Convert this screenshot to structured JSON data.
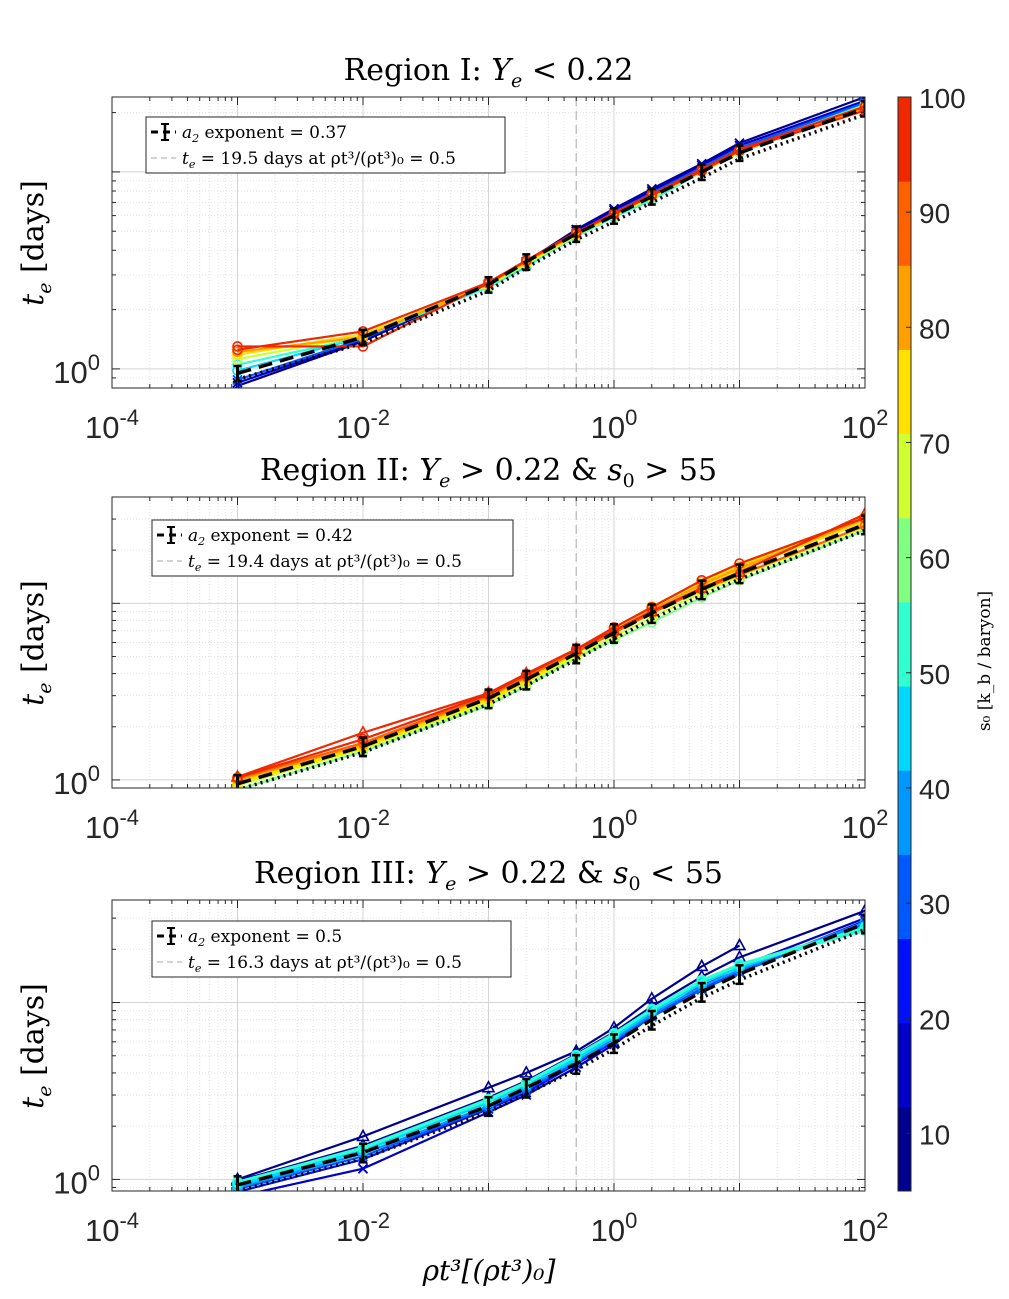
{
  "figure": {
    "xlabel": "ρt³[(ρt³)₀]",
    "ylabel_symbol": "t",
    "ylabel_sub": "e",
    "ylabel_units": "[days]",
    "x_ticks": [
      {
        "mantissa": "10",
        "exp": "-4",
        "value": 0.0001
      },
      {
        "mantissa": "10",
        "exp": "-2",
        "value": 0.01
      },
      {
        "mantissa": "10",
        "exp": "0",
        "value": 1
      },
      {
        "mantissa": "10",
        "exp": "2",
        "value": 100
      }
    ],
    "y_tick": {
      "mantissa": "10",
      "exp": "0",
      "value": 1
    }
  },
  "colorbar": {
    "label": "s₀ [k_b / baryon]",
    "ticks": [
      "10",
      "20",
      "30",
      "40",
      "50",
      "60",
      "70",
      "80",
      "90",
      "100"
    ],
    "range": [
      5,
      100
    ],
    "colors": [
      "#00008f",
      "#0000c8",
      "#0010ff",
      "#0058ff",
      "#0098ff",
      "#00d8ff",
      "#30ffd0",
      "#80ff80",
      "#d0ff30",
      "#ffe000",
      "#ffa000",
      "#ff6000",
      "#f02800"
    ]
  },
  "chart_data": [
    {
      "type": "line",
      "title": "Region I: Y_e < 0.22",
      "title_parts": [
        "Region I: ",
        "Y",
        "e",
        " < 0.22"
      ],
      "xlabel": "ρt³[(ρt³)₀]",
      "ylabel": "t_e [days]",
      "xscale": "log",
      "yscale": "log",
      "xlim": [
        0.0001,
        100
      ],
      "ylim": [
        0.8,
        24
      ],
      "dashed_vline_x": 0.5,
      "x": [
        0.001,
        0.01,
        0.1,
        0.2,
        0.5,
        1,
        2,
        5,
        10,
        100
      ],
      "legend": {
        "entries": [
          {
            "prefix": "a",
            "sub": "2",
            "text": " exponent = 0.37"
          },
          {
            "prefix": "t",
            "sub": "e",
            "text": " = 19.5 days at ρt³/(ρt³)₀ = 0.5"
          }
        ],
        "placement": "top-left"
      },
      "fit": {
        "values": [
          0.95,
          1.45,
          2.68,
          3.5,
          4.85,
          6.0,
          7.5,
          10.0,
          12.5,
          21.0
        ],
        "err": 0.09
      },
      "series": [
        {
          "s0": 8,
          "marker": "x",
          "values": [
            0.82,
            1.38,
            2.68,
            3.5,
            5.1,
            6.5,
            8.2,
            11.0,
            14.0,
            24.0
          ]
        },
        {
          "s0": 18,
          "marker": "x",
          "values": [
            0.85,
            1.4,
            2.7,
            3.5,
            5.0,
            6.4,
            8.0,
            10.8,
            13.6,
            23.0
          ]
        },
        {
          "s0": 30,
          "marker": "x",
          "values": [
            0.88,
            1.42,
            2.7,
            3.45,
            4.9,
            6.2,
            7.8,
            10.5,
            13.2,
            22.5
          ]
        },
        {
          "s0": 42,
          "marker": "o",
          "values": [
            0.98,
            1.45,
            2.6,
            3.3,
            4.8,
            6.0,
            7.4,
            10.2,
            12.7,
            22.0
          ]
        },
        {
          "s0": 55,
          "marker": "o",
          "values": [
            1.05,
            1.45,
            2.6,
            3.35,
            4.7,
            5.9,
            7.2,
            10.0,
            12.5,
            21.5
          ]
        },
        {
          "s0": 65,
          "marker": "o",
          "values": [
            1.12,
            1.48,
            2.65,
            3.4,
            4.75,
            6.0,
            7.4,
            10.1,
            12.7,
            21.8
          ]
        },
        {
          "s0": 75,
          "marker": "o",
          "values": [
            1.18,
            1.5,
            2.7,
            3.45,
            4.8,
            6.0,
            7.5,
            10.0,
            12.6,
            21.5
          ]
        },
        {
          "s0": 85,
          "marker": "o",
          "values": [
            1.22,
            1.45,
            2.7,
            3.5,
            4.85,
            6.1,
            7.6,
            10.2,
            12.8,
            21.0
          ]
        },
        {
          "s0": 95,
          "marker": "o",
          "values": [
            1.3,
            1.3,
            2.72,
            3.55,
            4.9,
            6.2,
            7.7,
            10.3,
            13.0,
            21.5
          ]
        },
        {
          "s0": 99,
          "marker": "o",
          "values": [
            1.25,
            1.55,
            2.75,
            3.55,
            4.95,
            6.1,
            7.6,
            10.1,
            12.8,
            20.5
          ]
        }
      ]
    },
    {
      "type": "line",
      "title": "Region II: Y_e > 0.22 & s_0 > 55",
      "title_parts": [
        "Region II: ",
        "Y",
        "e",
        " > 0.22 & ",
        "s",
        "0",
        " > 55"
      ],
      "xlabel": "ρt³[(ρt³)₀]",
      "ylabel": "t_e [days]",
      "xscale": "log",
      "yscale": "log",
      "xlim": [
        0.0001,
        100
      ],
      "ylim": [
        0.9,
        40
      ],
      "dashed_vline_x": 0.5,
      "x": [
        0.001,
        0.01,
        0.1,
        0.2,
        0.5,
        1,
        2,
        5,
        10,
        100
      ],
      "legend": {
        "entries": [
          {
            "prefix": "a",
            "sub": "2",
            "text": " exponent = 0.42"
          },
          {
            "prefix": "t",
            "sub": "e",
            "text": " = 19.4 days at ρt³/(ρt³)₀ = 0.5"
          }
        ],
        "placement": "top-left"
      },
      "fit": {
        "values": [
          0.95,
          1.55,
          2.9,
          3.7,
          5.2,
          6.8,
          8.8,
          12.0,
          14.8,
          28.0
        ],
        "err": 0.12
      },
      "series": [
        {
          "s0": 60,
          "marker": "o",
          "values": [
            0.88,
            1.45,
            2.65,
            3.4,
            4.9,
            6.2,
            7.8,
            10.8,
            13.5,
            26.0
          ]
        },
        {
          "s0": 66,
          "marker": "o",
          "values": [
            0.93,
            1.5,
            2.75,
            3.55,
            5.0,
            6.5,
            8.3,
            11.5,
            14.2,
            27.0
          ]
        },
        {
          "s0": 72,
          "marker": "o",
          "values": [
            0.96,
            1.52,
            2.85,
            3.6,
            5.2,
            6.9,
            9.0,
            12.5,
            15.5,
            29.0
          ]
        },
        {
          "s0": 78,
          "marker": "o",
          "values": [
            0.98,
            1.55,
            2.9,
            3.7,
            5.3,
            7.2,
            9.6,
            13.2,
            16.2,
            31.0
          ]
        },
        {
          "s0": 84,
          "marker": "o",
          "values": [
            1.0,
            1.58,
            2.95,
            3.8,
            5.4,
            7.0,
            9.2,
            12.8,
            15.8,
            30.0
          ]
        },
        {
          "s0": 89,
          "marker": "o",
          "values": [
            1.02,
            1.62,
            3.0,
            3.85,
            5.3,
            6.8,
            8.8,
            12.0,
            14.5,
            27.5
          ]
        },
        {
          "s0": 93,
          "marker": "o",
          "values": [
            1.03,
            1.7,
            3.05,
            3.95,
            5.5,
            7.3,
            9.5,
            13.5,
            16.8,
            30.5
          ]
        },
        {
          "s0": 97,
          "marker": "^",
          "values": [
            1.04,
            1.85,
            3.1,
            4.0,
            5.5,
            7.0,
            9.0,
            12.2,
            15.0,
            32.0
          ]
        }
      ]
    },
    {
      "type": "line",
      "title": "Region III: Y_e > 0.22 & s_0 < 55",
      "title_parts": [
        "Region III: ",
        "Y",
        "e",
        " > 0.22 & ",
        "s",
        "0",
        " < 55"
      ],
      "xlabel": "ρt³[(ρt³)₀]",
      "ylabel": "t_e [days]",
      "xscale": "log",
      "yscale": "log",
      "xlim": [
        0.0001,
        100
      ],
      "ylim": [
        0.86,
        38
      ],
      "dashed_vline_x": 0.5,
      "x": [
        0.001,
        0.01,
        0.1,
        0.2,
        0.5,
        1,
        2,
        5,
        10,
        100
      ],
      "legend": {
        "entries": [
          {
            "prefix": "a",
            "sub": "2",
            "text": " exponent = 0.5"
          },
          {
            "prefix": "t",
            "sub": "e",
            "text": " = 16.3 days at ρt³/(ρt³)₀ = 0.5"
          }
        ],
        "placement": "top-left"
      },
      "fit": {
        "values": [
          0.93,
          1.42,
          2.6,
          3.3,
          4.5,
          5.9,
          8.0,
          11.5,
          14.5,
          28.0
        ],
        "err": 0.12
      },
      "series": [
        {
          "s0": 7,
          "marker": "^",
          "values": [
            1.0,
            1.75,
            3.3,
            4.0,
            5.3,
            7.2,
            10.5,
            16.0,
            21.0,
            null
          ]
        },
        {
          "s0": 9,
          "marker": "^",
          "values": [
            0.98,
            1.55,
            2.9,
            3.6,
            5.1,
            6.8,
            9.5,
            14.0,
            18.0,
            33.0
          ]
        },
        {
          "s0": 14,
          "marker": "x",
          "values": [
            0.8,
            1.15,
            2.4,
            3.0,
            4.3,
            5.8,
            8.4,
            12.5,
            16.0,
            30.0
          ]
        },
        {
          "s0": 20,
          "marker": "x",
          "values": [
            0.85,
            1.3,
            2.5,
            3.1,
            4.5,
            6.0,
            8.5,
            12.0,
            15.0,
            29.0
          ]
        },
        {
          "s0": 28,
          "marker": "x",
          "values": [
            0.88,
            1.35,
            2.55,
            3.2,
            4.6,
            6.1,
            8.3,
            11.8,
            14.8,
            28.0
          ]
        },
        {
          "s0": 36,
          "marker": "o",
          "values": [
            0.9,
            1.4,
            2.6,
            3.3,
            4.7,
            6.2,
            8.6,
            12.3,
            15.3,
            28.5
          ]
        },
        {
          "s0": 42,
          "marker": "o",
          "values": [
            0.92,
            1.45,
            2.7,
            3.4,
            4.8,
            6.4,
            8.9,
            12.8,
            15.8,
            27.0
          ]
        },
        {
          "s0": 47,
          "marker": "o",
          "values": [
            0.94,
            1.48,
            2.75,
            3.45,
            4.9,
            6.5,
            9.0,
            13.0,
            16.0,
            26.0
          ]
        },
        {
          "s0": 51,
          "marker": "o",
          "values": [
            0.96,
            1.5,
            2.8,
            3.5,
            5.0,
            6.6,
            9.1,
            13.2,
            16.3,
            25.5
          ]
        },
        {
          "s0": 54,
          "marker": "o",
          "values": [
            0.97,
            1.52,
            2.85,
            3.55,
            5.05,
            6.7,
            9.2,
            13.4,
            16.5,
            26.5
          ]
        }
      ]
    }
  ]
}
